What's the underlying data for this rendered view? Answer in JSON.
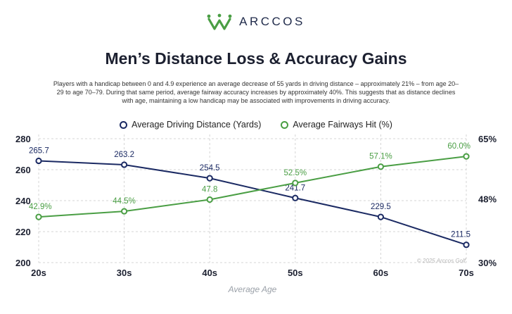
{
  "brand": {
    "name": "ARCCOS"
  },
  "header": {
    "title": "Men’s Distance Loss & Accuracy Gains",
    "subtitle": "Players with a handicap between 0 and 4.9 experience an average decrease of 55 yards in driving distance – approximately 21% – from age 20–29 to age 70–79. During that same period, average fairway accuracy increases by approximately 40%. This suggests that as distance declines with age, maintaining a low handicap may be associated with improvements in driving accuracy."
  },
  "copyright": "© 2025 Arccos Golf",
  "colors": {
    "navy": "#1b2a63",
    "green": "#4a9e44"
  },
  "chart_data": {
    "type": "line",
    "title": "Men’s Distance Loss & Accuracy Gains",
    "xlabel": "Average Age",
    "categories": [
      "20s",
      "30s",
      "40s",
      "50s",
      "60s",
      "70s"
    ],
    "legend_position": "top-center",
    "grid": true,
    "y_left": {
      "ticks": [
        "200",
        "220",
        "240",
        "260",
        "280"
      ],
      "ylim": [
        200,
        280
      ]
    },
    "y_right": {
      "ticks": [
        "30%",
        "48%",
        "65%"
      ],
      "ylim": [
        30,
        65
      ]
    },
    "series": [
      {
        "name": "Average Driving Distance (Yards)",
        "axis": "left",
        "color": "#1b2a63",
        "values": [
          265.7,
          263.2,
          254.5,
          241.7,
          229.5,
          211.5
        ],
        "labels": [
          "265.7",
          "263.2",
          "254.5",
          "241.7",
          "229.5",
          "211.5"
        ]
      },
      {
        "name": "Average Fairways Hit (%)",
        "axis": "right",
        "color": "#4a9e44",
        "values": [
          42.9,
          44.5,
          47.8,
          52.5,
          57.1,
          60.0
        ],
        "labels": [
          "42.9%",
          "44.5%",
          "47.8",
          "52.5%",
          "57.1%",
          "60.0%"
        ]
      }
    ]
  }
}
